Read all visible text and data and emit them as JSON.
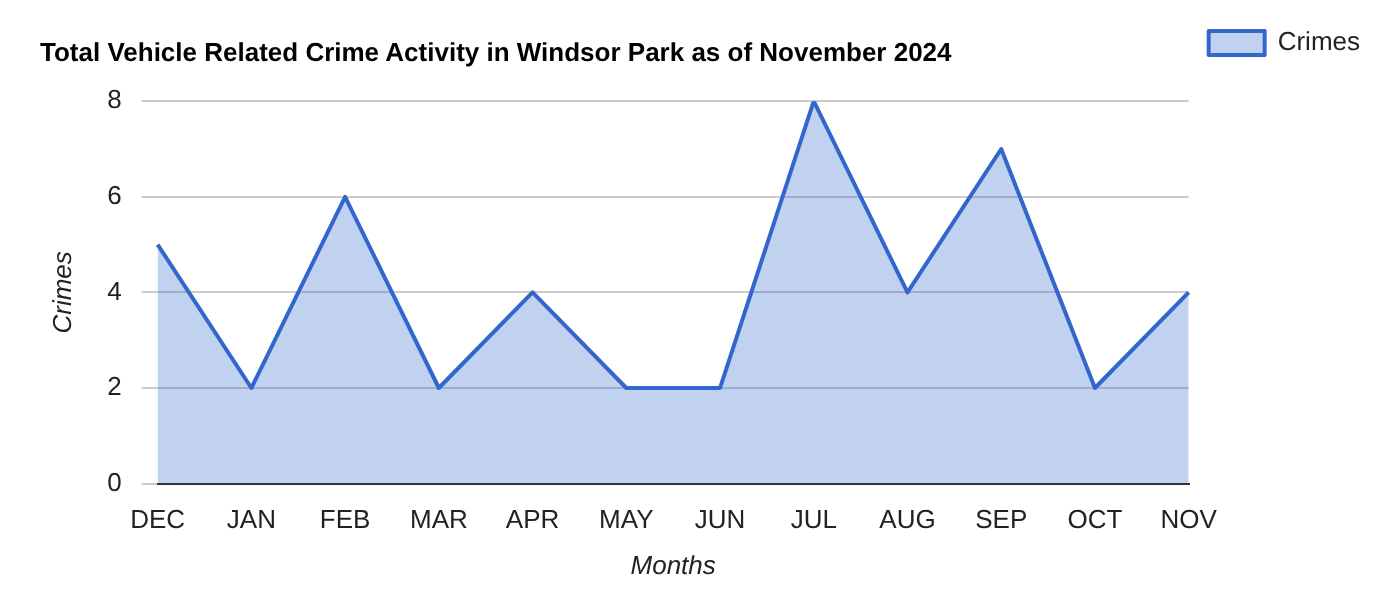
{
  "chart_data": {
    "type": "area",
    "title": "Total Vehicle Related Crime Activity in Windsor Park as of November 2024",
    "xlabel": "Months",
    "ylabel": "Crimes",
    "categories": [
      "DEC",
      "JAN",
      "FEB",
      "MAR",
      "APR",
      "MAY",
      "JUN",
      "JUL",
      "AUG",
      "SEP",
      "OCT",
      "NOV"
    ],
    "series": [
      {
        "name": "Crimes",
        "color": "#3366cc",
        "values": [
          5,
          2,
          6,
          2,
          4,
          2,
          2,
          8,
          4,
          7,
          2,
          4
        ]
      }
    ],
    "ylim": [
      0,
      8
    ],
    "yticks": [
      0,
      2,
      4,
      6,
      8
    ],
    "grid": "y",
    "legend": "top right"
  }
}
